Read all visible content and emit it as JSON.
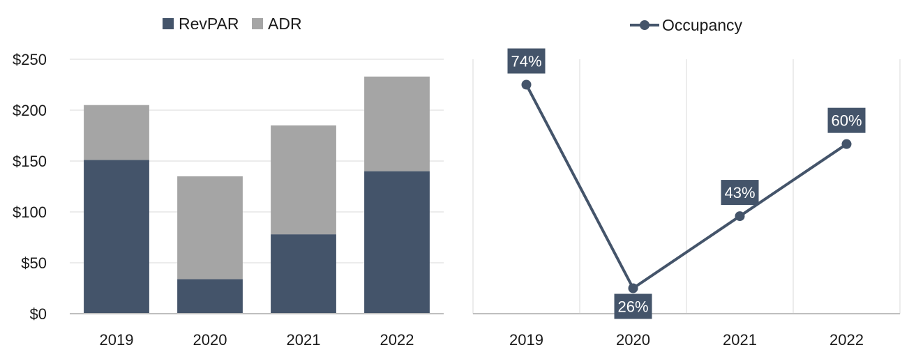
{
  "colors": {
    "revpar": "#44546A",
    "adr": "#A5A5A5",
    "occupancy": "#44546A",
    "grid": "#E6E6E6",
    "axis": "#BFBFBF"
  },
  "chart_data": [
    {
      "type": "bar",
      "stacked": true,
      "categories": [
        "2019",
        "2020",
        "2021",
        "2022"
      ],
      "series": [
        {
          "name": "RevPAR",
          "values": [
            151,
            34,
            78,
            140
          ]
        },
        {
          "name": "ADR",
          "values": [
            54,
            101,
            107,
            93
          ]
        }
      ],
      "y_ticks": [
        "$0",
        "$50",
        "$100",
        "$150",
        "$200",
        "$250"
      ],
      "ylim": [
        0,
        250
      ],
      "grid": true,
      "legend": "top-center"
    },
    {
      "type": "line",
      "categories": [
        "2019",
        "2020",
        "2021",
        "2022"
      ],
      "series": [
        {
          "name": "Occupancy",
          "values": [
            74,
            26,
            43,
            60
          ],
          "labels": [
            "74%",
            "26%",
            "43%",
            "60%"
          ]
        }
      ],
      "ylim": [
        20,
        80
      ],
      "grid": true,
      "legend": "top-center"
    }
  ]
}
